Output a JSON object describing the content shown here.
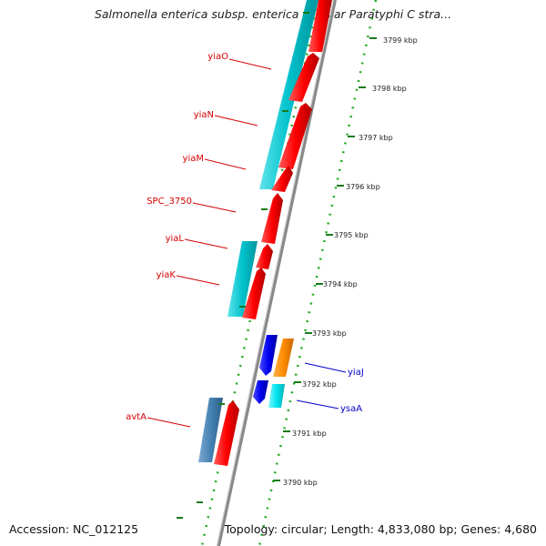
{
  "title": "Salmonella enterica subsp. enterica serovar Paratyphi C stra...",
  "footer": {
    "accession": "Accession: NC_012125",
    "summary": "Topology: circular; Length: 4,833,080 bp; Genes: 4,680"
  },
  "ticks": [
    {
      "label": "3799 kbp"
    },
    {
      "label": "3798 kbp"
    },
    {
      "label": "3797 kbp"
    },
    {
      "label": "3796 kbp"
    },
    {
      "label": "3795 kbp"
    },
    {
      "label": "3794 kbp"
    },
    {
      "label": "3793 kbp"
    },
    {
      "label": "3792 kbp"
    },
    {
      "label": "3791 kbp"
    },
    {
      "label": "3790 kbp"
    }
  ],
  "genes_left": [
    {
      "name": "yiaO",
      "color": "#d40000"
    },
    {
      "name": "yiaN",
      "color": "#d40000"
    },
    {
      "name": "yiaM",
      "color": "#d40000"
    },
    {
      "name": "SPC_3750",
      "color": "#d40000"
    },
    {
      "name": "yiaL",
      "color": "#d40000"
    },
    {
      "name": "yiaK",
      "color": "#d40000"
    },
    {
      "name": "avtA",
      "color": "#d40000"
    }
  ],
  "genes_right": [
    {
      "name": "yiaJ",
      "color": "#0000cc"
    },
    {
      "name": "ysaA",
      "color": "#0000cc"
    }
  ],
  "colors": {
    "forward_cds": "#ff0000",
    "forward_feature": "#00c8d2",
    "reverse_cds": "#0000ee",
    "reverse_orange": "#ff8c00",
    "reverse_cyan": "#00e5ee",
    "steel_blue": "#4682b4",
    "backbone": "#888888",
    "gc_dots": "#22aa22"
  }
}
